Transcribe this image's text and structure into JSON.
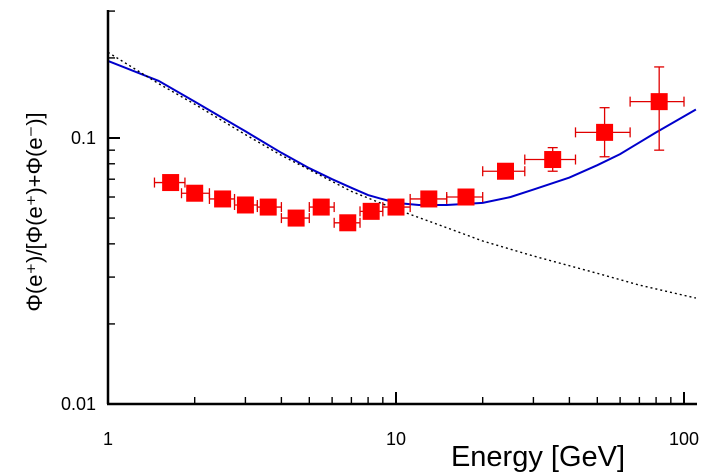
{
  "chart_data": {
    "type": "scatter",
    "title": "",
    "xlabel": "Energy [GeV]",
    "ylabel": "Φ(e⁺)/[Φ(e⁺)+Φ(e⁻)]",
    "xscale": "log",
    "yscale": "log",
    "xlim": [
      1,
      110
    ],
    "ylim": [
      0.01,
      0.3
    ],
    "x_ticks": [
      {
        "value": 1,
        "label": "1"
      },
      {
        "value": 10,
        "label": "10"
      },
      {
        "value": 100,
        "label": "100"
      }
    ],
    "y_ticks": [
      {
        "value": 0.01,
        "label": "0.01"
      },
      {
        "value": 0.1,
        "label": "0.1"
      }
    ],
    "grid": false,
    "legend": "none",
    "colors": {
      "data_points": "#ff0000",
      "error_bars": "#e00000",
      "solid_curve": "#0000cc",
      "dotted_curve": "#000000",
      "axes": "#000000"
    },
    "series": [
      {
        "type": "scatter-errorbars",
        "marker": "square",
        "points": [
          {
            "x": 1.65,
            "y": 0.068,
            "xerr": [
              1.45,
              1.85
            ],
            "yerr": [
              0.066,
              0.07
            ]
          },
          {
            "x": 2.0,
            "y": 0.062,
            "xerr": [
              1.8,
              2.25
            ],
            "yerr": [
              0.06,
              0.064
            ]
          },
          {
            "x": 2.5,
            "y": 0.059,
            "xerr": [
              2.25,
              2.75
            ],
            "yerr": [
              0.057,
              0.061
            ]
          },
          {
            "x": 3.0,
            "y": 0.056,
            "xerr": [
              2.75,
              3.3
            ],
            "yerr": [
              0.054,
              0.058
            ]
          },
          {
            "x": 3.6,
            "y": 0.055,
            "xerr": [
              3.3,
              4.0
            ],
            "yerr": [
              0.053,
              0.057
            ]
          },
          {
            "x": 4.5,
            "y": 0.05,
            "xerr": [
              4.0,
              5.0
            ],
            "yerr": [
              0.048,
              0.052
            ]
          },
          {
            "x": 5.5,
            "y": 0.055,
            "xerr": [
              5.0,
              6.1
            ],
            "yerr": [
              0.053,
              0.057
            ]
          },
          {
            "x": 6.8,
            "y": 0.048,
            "xerr": [
              6.1,
              7.5
            ],
            "yerr": [
              0.046,
              0.05
            ]
          },
          {
            "x": 8.2,
            "y": 0.053,
            "xerr": [
              7.5,
              9.0
            ],
            "yerr": [
              0.051,
              0.055
            ]
          },
          {
            "x": 10.0,
            "y": 0.055,
            "xerr": [
              9.0,
              11.2
            ],
            "yerr": [
              0.053,
              0.057
            ]
          },
          {
            "x": 13.0,
            "y": 0.059,
            "xerr": [
              11.2,
              15.0
            ],
            "yerr": [
              0.057,
              0.061
            ]
          },
          {
            "x": 17.5,
            "y": 0.06,
            "xerr": [
              15.0,
              20.0
            ],
            "yerr": [
              0.058,
              0.062
            ]
          },
          {
            "x": 24.0,
            "y": 0.075,
            "xerr": [
              20.0,
              28.0
            ],
            "yerr": [
              0.071,
              0.079
            ]
          },
          {
            "x": 35.0,
            "y": 0.083,
            "xerr": [
              28.0,
              42.0
            ],
            "yerr": [
              0.075,
              0.092
            ]
          },
          {
            "x": 53.0,
            "y": 0.105,
            "xerr": [
              42.0,
              65.0
            ],
            "yerr": [
              0.085,
              0.13
            ]
          },
          {
            "x": 82.0,
            "y": 0.137,
            "xerr": [
              65.0,
              100.0
            ],
            "yerr": [
              0.09,
              0.185
            ]
          }
        ]
      },
      {
        "type": "line",
        "style": "solid",
        "points": [
          {
            "x": 1.0,
            "y": 0.195
          },
          {
            "x": 1.5,
            "y": 0.164
          },
          {
            "x": 2.0,
            "y": 0.137
          },
          {
            "x": 3.0,
            "y": 0.106
          },
          {
            "x": 4.0,
            "y": 0.088
          },
          {
            "x": 5.0,
            "y": 0.077
          },
          {
            "x": 6.0,
            "y": 0.07
          },
          {
            "x": 7.0,
            "y": 0.065
          },
          {
            "x": 8.0,
            "y": 0.061
          },
          {
            "x": 10.0,
            "y": 0.057
          },
          {
            "x": 12.0,
            "y": 0.056
          },
          {
            "x": 15.0,
            "y": 0.056
          },
          {
            "x": 20.0,
            "y": 0.057
          },
          {
            "x": 25.0,
            "y": 0.06
          },
          {
            "x": 30.0,
            "y": 0.064
          },
          {
            "x": 40.0,
            "y": 0.071
          },
          {
            "x": 50.0,
            "y": 0.079
          },
          {
            "x": 60.0,
            "y": 0.087
          },
          {
            "x": 80.0,
            "y": 0.105
          },
          {
            "x": 110.0,
            "y": 0.128
          }
        ]
      },
      {
        "type": "line",
        "style": "dotted",
        "points": [
          {
            "x": 1.0,
            "y": 0.21
          },
          {
            "x": 1.5,
            "y": 0.16
          },
          {
            "x": 2.0,
            "y": 0.134
          },
          {
            "x": 3.0,
            "y": 0.103
          },
          {
            "x": 4.0,
            "y": 0.086
          },
          {
            "x": 5.0,
            "y": 0.076
          },
          {
            "x": 7.0,
            "y": 0.063
          },
          {
            "x": 10.0,
            "y": 0.054
          },
          {
            "x": 15.0,
            "y": 0.046
          },
          {
            "x": 20.0,
            "y": 0.041
          },
          {
            "x": 30.0,
            "y": 0.036
          },
          {
            "x": 50.0,
            "y": 0.031
          },
          {
            "x": 70.0,
            "y": 0.028
          },
          {
            "x": 110.0,
            "y": 0.025
          }
        ]
      }
    ]
  }
}
